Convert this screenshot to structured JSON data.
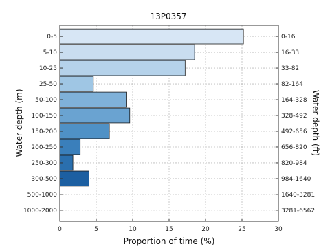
{
  "chart_data": {
    "type": "bar",
    "orientation": "horizontal",
    "title": "13P0357",
    "xlabel": "Proportion of time (%)",
    "ylabel": "Water depth (m)",
    "ylabel_right": "Water depth (ft)",
    "xlim": [
      0,
      30
    ],
    "x_ticks": [
      "0",
      "5",
      "10",
      "15",
      "20",
      "25",
      "30"
    ],
    "grid": true,
    "categories": [
      "0-5",
      "5-10",
      "10-25",
      "25-50",
      "50-100",
      "100-150",
      "150-200",
      "200-250",
      "250-300",
      "300-500",
      "500-1000",
      "1000-2000"
    ],
    "categories_right": [
      "0-16",
      "16-33",
      "33-82",
      "82-164",
      "164-328",
      "328-492",
      "492-656",
      "656-820",
      "820-984",
      "984-1640",
      "1640-3281",
      "3281-6562"
    ],
    "values": [
      25.2,
      18.5,
      17.2,
      4.6,
      9.2,
      9.6,
      6.8,
      2.8,
      1.8,
      4.0,
      0,
      0
    ],
    "colors": [
      "#d7e6f5",
      "#c9ddf0",
      "#b5d2ea",
      "#9fc6e4",
      "#7fb1d9",
      "#6aa3d1",
      "#4f91c6",
      "#3a7fbb",
      "#2a6fae",
      "#1c5fa1",
      "#0e4d8f",
      "#08397a"
    ]
  }
}
